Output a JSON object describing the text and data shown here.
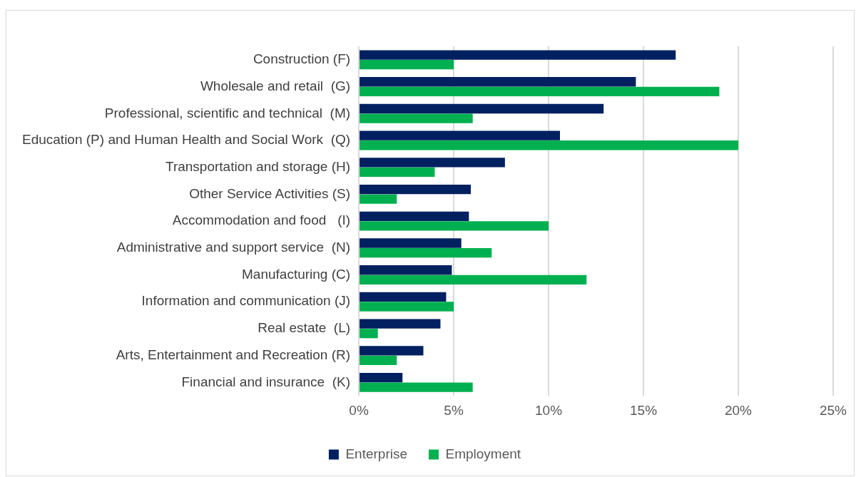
{
  "chart_data": {
    "type": "bar",
    "orientation": "horizontal",
    "categories": [
      "Construction (F)",
      "Wholesale and retail  (G)",
      "Professional, scientific and technical  (M)",
      "Education (P) and Human Health and Social Work  (Q)",
      "Transportation and storage (H)",
      "Other Service Activities (S)",
      "Accommodation and food   (I)",
      "Administrative and support service  (N)",
      "Manufacturing (C)",
      "Information and communication (J)",
      "Real estate  (L)",
      "Arts, Entertainment and Recreation (R)",
      "Financial and insurance  (K)"
    ],
    "series": [
      {
        "name": "Enterprise",
        "color": "#002060",
        "values": [
          16.7,
          14.6,
          12.9,
          10.6,
          7.7,
          5.9,
          5.8,
          5.4,
          4.9,
          4.6,
          4.3,
          3.4,
          2.3
        ]
      },
      {
        "name": "Employment",
        "color": "#00b050",
        "values": [
          5,
          19,
          6,
          20,
          4,
          2,
          10,
          7,
          12,
          5,
          1,
          2,
          6
        ]
      }
    ],
    "xlim": [
      0,
      25
    ],
    "xticks": [
      {
        "value": 0,
        "label": "0%"
      },
      {
        "value": 5,
        "label": "5%"
      },
      {
        "value": 10,
        "label": "10%"
      },
      {
        "value": 15,
        "label": "15%"
      },
      {
        "value": 20,
        "label": "20%"
      },
      {
        "value": 25,
        "label": "25%"
      }
    ],
    "grid": "x",
    "legend": "bottom"
  }
}
